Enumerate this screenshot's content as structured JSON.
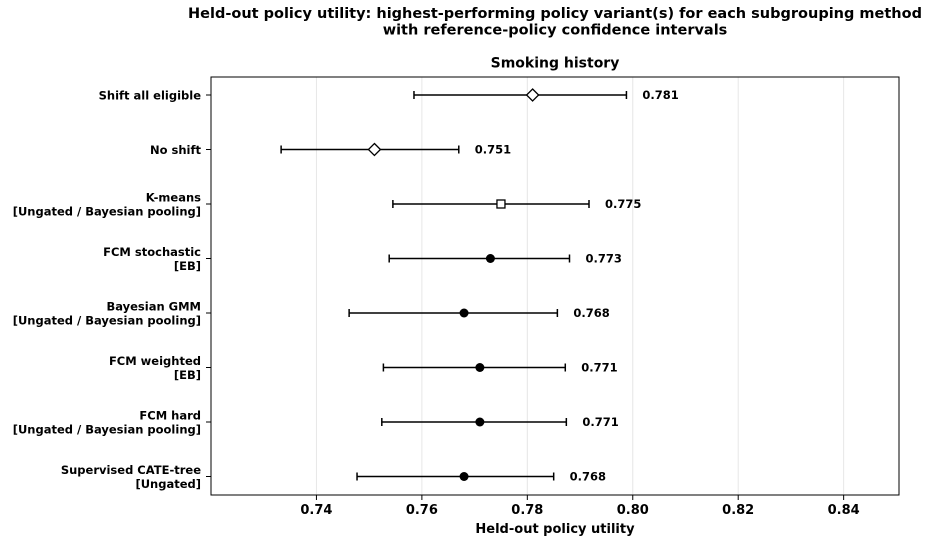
{
  "chart_data": {
    "type": "forest",
    "title_lines": [
      "Held-out policy utility: highest-performing policy variant(s) for each subgrouping method",
      "with reference-policy confidence intervals"
    ],
    "subtitle": "Smoking history",
    "xlabel": "Held-out policy utility",
    "xlim": [
      0.72,
      0.8505
    ],
    "xticks": [
      0.74,
      0.76,
      0.78,
      0.8,
      0.82,
      0.84
    ],
    "xtick_labels": [
      "0.74",
      "0.76",
      "0.78",
      "0.80",
      "0.82",
      "0.84"
    ],
    "grid": "vertical",
    "rows": [
      {
        "label_lines": [
          "Shift all eligible"
        ],
        "value": 0.781,
        "value_label": "0.781",
        "ci": [
          0.7585,
          0.7988
        ],
        "marker": "diamond-open"
      },
      {
        "label_lines": [
          "No shift"
        ],
        "value": 0.751,
        "value_label": "0.751",
        "ci": [
          0.7333,
          0.767
        ],
        "marker": "diamond-open"
      },
      {
        "label_lines": [
          "K-means",
          "[Ungated / Bayesian pooling]"
        ],
        "value": 0.775,
        "value_label": "0.775",
        "ci": [
          0.7545,
          0.7917
        ],
        "marker": "square-open"
      },
      {
        "label_lines": [
          "FCM stochastic",
          "[EB]"
        ],
        "value": 0.773,
        "value_label": "0.773",
        "ci": [
          0.7538,
          0.788
        ],
        "marker": "circle-filled"
      },
      {
        "label_lines": [
          "Bayesian GMM",
          "[Ungated / Bayesian pooling]"
        ],
        "value": 0.768,
        "value_label": "0.768",
        "ci": [
          0.7462,
          0.7857
        ],
        "marker": "circle-filled"
      },
      {
        "label_lines": [
          "FCM weighted",
          "[EB]"
        ],
        "value": 0.771,
        "value_label": "0.771",
        "ci": [
          0.7527,
          0.7872
        ],
        "marker": "circle-filled"
      },
      {
        "label_lines": [
          "FCM hard",
          "[Ungated / Bayesian pooling]"
        ],
        "value": 0.771,
        "value_label": "0.771",
        "ci": [
          0.7524,
          0.7874
        ],
        "marker": "circle-filled"
      },
      {
        "label_lines": [
          "Supervised CATE-tree",
          "[Ungated]"
        ],
        "value": 0.768,
        "value_label": "0.768",
        "ci": [
          0.7477,
          0.785
        ],
        "marker": "circle-filled"
      }
    ]
  }
}
